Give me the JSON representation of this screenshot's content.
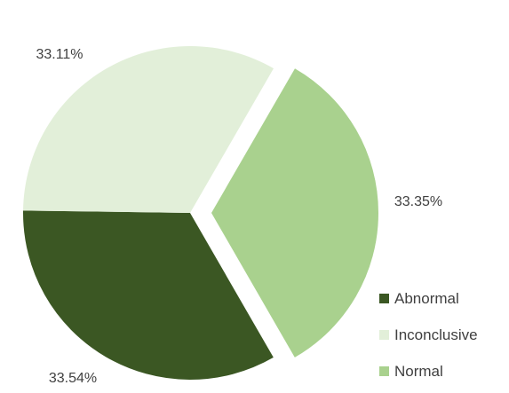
{
  "chart_data": {
    "type": "pie",
    "slices": [
      {
        "name": "Normal",
        "value": 33.35,
        "label": "33.35%",
        "color": "#a9d18e",
        "exploded": true
      },
      {
        "name": "Abnormal",
        "value": 33.54,
        "label": "33.54%",
        "color": "#3b5723",
        "exploded": false
      },
      {
        "name": "Inconclusive",
        "value": 33.11,
        "label": "33.11%",
        "color": "#e2efd9",
        "exploded": false
      }
    ],
    "legend": {
      "position": "right",
      "items": [
        {
          "name": "Abnormal",
          "color": "#3b5723"
        },
        {
          "name": "Inconclusive",
          "color": "#e2efd9"
        },
        {
          "name": "Normal",
          "color": "#a9d18e"
        }
      ]
    }
  }
}
